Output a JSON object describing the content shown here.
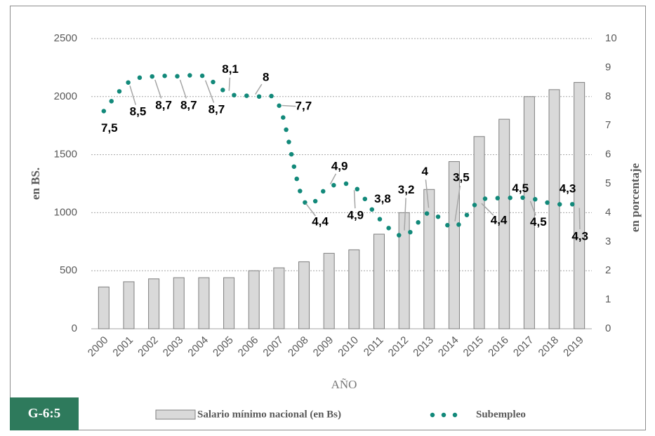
{
  "chart_data": {
    "type": "bar_line",
    "xlabel": "AÑO",
    "ylabel": "en BS.",
    "y2label": "en porcentaje",
    "badge": "G-6:5",
    "categories": [
      "2000",
      "2001",
      "2002",
      "2003",
      "2004",
      "2005",
      "2006",
      "2007",
      "2008",
      "2009",
      "2010",
      "2011",
      "2012",
      "2013",
      "2014",
      "2015",
      "2016",
      "2017",
      "2018",
      "2019"
    ],
    "series": [
      {
        "name": "Salario mínimo nacional (en Bs)",
        "type": "bar",
        "color": "#d9d9d9",
        "values": [
          360,
          405,
          430,
          440,
          440,
          440,
          500,
          525,
          577,
          650,
          680,
          815,
          1000,
          1200,
          1440,
          1656,
          1805,
          2000,
          2060,
          2122
        ]
      },
      {
        "name": "Subempleo",
        "type": "line",
        "axis": "y2",
        "color": "#12897a",
        "values": [
          7.5,
          8.5,
          8.7,
          8.7,
          8.7,
          8.1,
          8,
          7.7,
          4.4,
          4.9,
          4.9,
          3.8,
          3.2,
          4,
          3.5,
          4.4,
          4.5,
          4.5,
          4.3,
          4.3
        ],
        "value_labels": [
          "7,5",
          "8,5",
          "8,7",
          "8,7",
          "8,7",
          "8,1",
          "8",
          "7,7",
          "4,4",
          "4,9",
          "4,9",
          "3,8",
          "3,2",
          "4",
          "3,5",
          "4,4",
          "4,5",
          "4,5",
          "4,3",
          "4,3"
        ]
      }
    ],
    "ylim": [
      0,
      2500
    ],
    "yticks": [
      0,
      500,
      1000,
      1500,
      2000,
      2500
    ],
    "y2lim": [
      0,
      10
    ],
    "y2ticks": [
      0,
      1,
      2,
      3,
      4,
      5,
      6,
      7,
      8,
      9,
      10
    ],
    "grid": true
  }
}
